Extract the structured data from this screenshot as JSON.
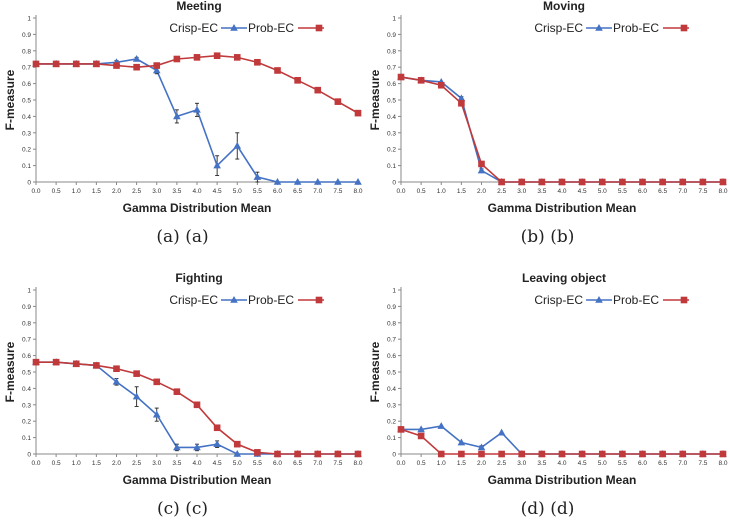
{
  "chart_data": [
    {
      "type": "line",
      "title": "Meeting",
      "xlabel": "Gamma Distribution Mean",
      "ylabel": "F-measure",
      "caption": "(a) (a)",
      "x": [
        0.0,
        0.5,
        1.0,
        1.5,
        2.0,
        2.5,
        3.0,
        3.5,
        4.0,
        4.5,
        5.0,
        5.5,
        6.0,
        6.5,
        7.0,
        7.5,
        8.0
      ],
      "x_tick_labels": [
        "0.0",
        "0.5",
        "1.0",
        "1.5",
        "2.0",
        "2.5",
        "3.0",
        "3.5",
        "4.0",
        "4.5",
        "5.0",
        "5.5",
        "6.0",
        "6.5",
        "7.0",
        "7.5",
        "8.0"
      ],
      "y_tick_labels": [
        "0",
        "0.1",
        "0.2",
        "0.3",
        "0.4",
        "0.5",
        "0.6",
        "0.7",
        "0.8",
        "0.9",
        "1"
      ],
      "xlim": [
        0,
        8
      ],
      "ylim": [
        0,
        1
      ],
      "grid": false,
      "legend": "top-right",
      "series": [
        {
          "name": "Crisp-EC",
          "color": "#4472c4",
          "marker": "triangle",
          "values": [
            0.72,
            0.72,
            0.72,
            0.72,
            0.73,
            0.75,
            0.68,
            0.4,
            0.44,
            0.1,
            0.22,
            0.03,
            0.0,
            0.0,
            0.0,
            0.0,
            0.0
          ],
          "errors": [
            0,
            0,
            0,
            0,
            0.01,
            0.01,
            0.02,
            0.04,
            0.04,
            0.06,
            0.08,
            0.03,
            0,
            0,
            0,
            0,
            0
          ]
        },
        {
          "name": "Prob-EC",
          "color": "#c0393b",
          "marker": "square",
          "values": [
            0.72,
            0.72,
            0.72,
            0.72,
            0.71,
            0.7,
            0.71,
            0.75,
            0.76,
            0.77,
            0.76,
            0.73,
            0.68,
            0.62,
            0.56,
            0.49,
            0.42
          ]
        }
      ]
    },
    {
      "type": "line",
      "title": "Moving",
      "xlabel": "Gamma Distribution Mean",
      "ylabel": "F-measure",
      "caption": "(b) (b)",
      "x": [
        0.0,
        0.5,
        1.0,
        1.5,
        2.0,
        2.5,
        3.0,
        3.5,
        4.0,
        4.5,
        5.0,
        5.5,
        6.0,
        6.5,
        7.0,
        7.5,
        8.0
      ],
      "x_tick_labels": [
        "0.0",
        "0.5",
        "1.0",
        "1.5",
        "2.0",
        "2.5",
        "3.0",
        "3.5",
        "4.0",
        "4.5",
        "5.0",
        "5.5",
        "6.0",
        "6.5",
        "7.0",
        "7.5",
        "8.0"
      ],
      "y_tick_labels": [
        "0",
        "0.1",
        "0.2",
        "0.3",
        "0.4",
        "0.5",
        "0.6",
        "0.7",
        "0.8",
        "0.9",
        "1"
      ],
      "xlim": [
        0,
        8
      ],
      "ylim": [
        0,
        1
      ],
      "grid": false,
      "legend": "top-right",
      "series": [
        {
          "name": "Crisp-EC",
          "color": "#4472c4",
          "marker": "triangle",
          "values": [
            0.64,
            0.62,
            0.61,
            0.51,
            0.07,
            0.0,
            0.0,
            0.0,
            0.0,
            0.0,
            0.0,
            0.0,
            0.0,
            0.0,
            0.0,
            0.0,
            0.0
          ],
          "errors": [
            0,
            0,
            0,
            0.01,
            0.01,
            0,
            0,
            0,
            0,
            0,
            0,
            0,
            0,
            0,
            0,
            0,
            0
          ]
        },
        {
          "name": "Prob-EC",
          "color": "#c0393b",
          "marker": "square",
          "values": [
            0.64,
            0.62,
            0.59,
            0.48,
            0.11,
            0.0,
            0.0,
            0.0,
            0.0,
            0.0,
            0.0,
            0.0,
            0.0,
            0.0,
            0.0,
            0.0,
            0.0
          ]
        }
      ]
    },
    {
      "type": "line",
      "title": "Fighting",
      "xlabel": "Gamma Distribution Mean",
      "ylabel": "F-measure",
      "caption": "(c) (c)",
      "x": [
        0.0,
        0.5,
        1.0,
        1.5,
        2.0,
        2.5,
        3.0,
        3.5,
        4.0,
        4.5,
        5.0,
        5.5,
        6.0,
        6.5,
        7.0,
        7.5,
        8.0
      ],
      "x_tick_labels": [
        "0.0",
        "0.5",
        "1.0",
        "1.5",
        "2.0",
        "2.5",
        "3.0",
        "3.5",
        "4.0",
        "4.5",
        "5.0",
        "5.5",
        "6.0",
        "6.5",
        "7.0",
        "7.5",
        "8.0"
      ],
      "y_tick_labels": [
        "0",
        "0.1",
        "0.2",
        "0.3",
        "0.4",
        "0.5",
        "0.6",
        "0.7",
        "0.8",
        "0.9",
        "1"
      ],
      "xlim": [
        0,
        8
      ],
      "ylim": [
        0,
        1
      ],
      "grid": false,
      "legend": "top-right",
      "series": [
        {
          "name": "Crisp-EC",
          "color": "#4472c4",
          "marker": "triangle",
          "values": [
            0.56,
            0.56,
            0.55,
            0.54,
            0.44,
            0.35,
            0.24,
            0.04,
            0.04,
            0.06,
            0.0,
            0.0,
            0.0,
            0.0,
            0.0,
            0.0,
            0.0
          ],
          "errors": [
            0,
            0,
            0,
            0,
            0.02,
            0.06,
            0.04,
            0.02,
            0.02,
            0.02,
            0,
            0,
            0,
            0,
            0,
            0,
            0
          ]
        },
        {
          "name": "Prob-EC",
          "color": "#c0393b",
          "marker": "square",
          "values": [
            0.56,
            0.56,
            0.55,
            0.54,
            0.52,
            0.49,
            0.44,
            0.38,
            0.3,
            0.16,
            0.06,
            0.01,
            0.0,
            0.0,
            0.0,
            0.0,
            0.0
          ]
        }
      ]
    },
    {
      "type": "line",
      "title": "Leaving object",
      "xlabel": "Gamma Distribution Mean",
      "ylabel": "F-measure",
      "caption": "(d) (d)",
      "x": [
        0.0,
        0.5,
        1.0,
        1.5,
        2.0,
        2.5,
        3.0,
        3.5,
        4.0,
        4.5,
        5.0,
        5.5,
        6.0,
        6.5,
        7.0,
        7.5,
        8.0
      ],
      "x_tick_labels": [
        "0.0",
        "0.5",
        "1.0",
        "1.5",
        "2.0",
        "2.5",
        "3.0",
        "3.5",
        "4.0",
        "4.5",
        "5.0",
        "5.5",
        "6.0",
        "6.5",
        "7.0",
        "7.5",
        "8.0"
      ],
      "y_tick_labels": [
        "0",
        "0.1",
        "0.2",
        "0.3",
        "0.4",
        "0.5",
        "0.6",
        "0.7",
        "0.8",
        "0.9",
        "1"
      ],
      "xlim": [
        0,
        8
      ],
      "ylim": [
        0,
        1
      ],
      "grid": false,
      "legend": "top-right",
      "series": [
        {
          "name": "Crisp-EC",
          "color": "#4472c4",
          "marker": "triangle",
          "values": [
            0.15,
            0.15,
            0.17,
            0.07,
            0.04,
            0.13,
            0.0,
            0.0,
            0.0,
            0.0,
            0.0,
            0.0,
            0.0,
            0.0,
            0.0,
            0.0,
            0.0
          ],
          "errors": [
            0,
            0,
            0,
            0,
            0.01,
            0,
            0,
            0,
            0,
            0,
            0,
            0,
            0,
            0,
            0,
            0,
            0
          ]
        },
        {
          "name": "Prob-EC",
          "color": "#c0393b",
          "marker": "square",
          "values": [
            0.15,
            0.11,
            0.0,
            0.0,
            0.0,
            0.0,
            0.0,
            0.0,
            0.0,
            0.0,
            0.0,
            0.0,
            0.0,
            0.0,
            0.0,
            0.0,
            0.0
          ]
        }
      ]
    }
  ]
}
